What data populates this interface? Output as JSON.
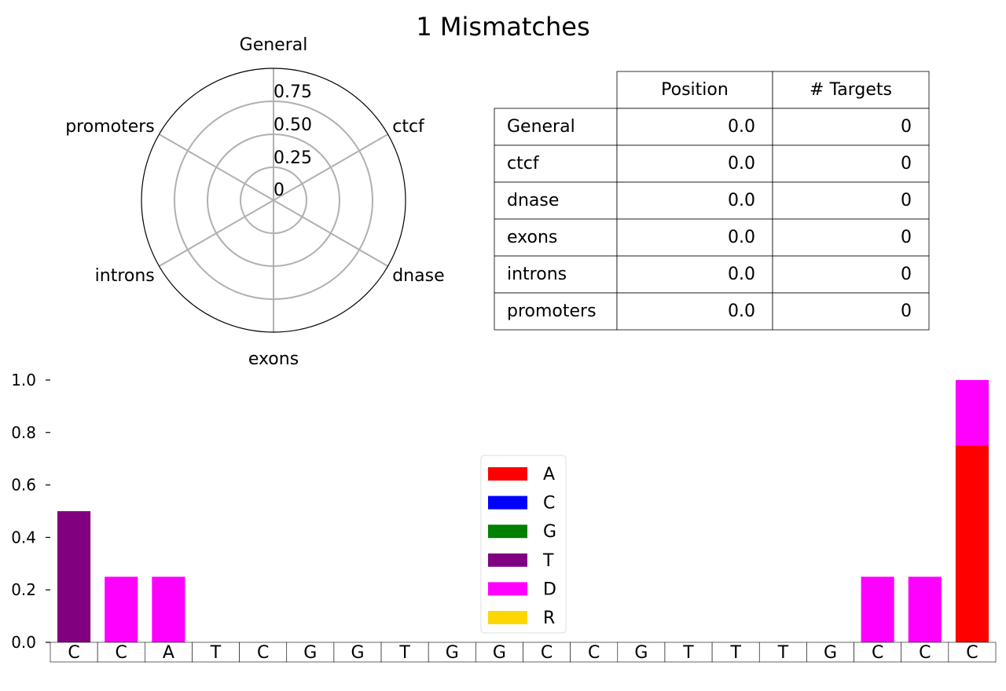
{
  "title": "1 Mismatches",
  "radar": {
    "categories": [
      "General",
      "ctcf",
      "dnase",
      "exons",
      "introns",
      "promoters"
    ],
    "values": [
      0,
      0,
      0,
      0,
      0,
      0
    ],
    "tick_labels": [
      "0",
      "0.25",
      "0.50",
      "0.75"
    ],
    "ticks": [
      0,
      0.25,
      0.5,
      0.75
    ],
    "rmax": 1.0
  },
  "table": {
    "headers": [
      "",
      "Position",
      "# Targets"
    ],
    "rows": [
      {
        "label": "General",
        "position": "0.0",
        "targets": "0"
      },
      {
        "label": "ctcf",
        "position": "0.0",
        "targets": "0"
      },
      {
        "label": "dnase",
        "position": "0.0",
        "targets": "0"
      },
      {
        "label": "exons",
        "position": "0.0",
        "targets": "0"
      },
      {
        "label": "introns",
        "position": "0.0",
        "targets": "0"
      },
      {
        "label": "promoters",
        "position": "0.0",
        "targets": "0"
      }
    ]
  },
  "colors": {
    "A": "#ff0000",
    "C": "#0000ff",
    "G": "#008000",
    "T": "#800080",
    "D": "#ff00ff",
    "R": "#ffd700"
  },
  "chart_data": [
    {
      "type": "radar",
      "categories": [
        "General",
        "ctcf",
        "dnase",
        "exons",
        "introns",
        "promoters"
      ],
      "values": [
        0,
        0,
        0,
        0,
        0,
        0
      ],
      "rlim": [
        0,
        1.0
      ],
      "rticks": [
        "0",
        "0.25",
        "0.50",
        "0.75"
      ]
    },
    {
      "type": "table",
      "columns": [
        "Position",
        "# Targets"
      ],
      "rows": [
        "General",
        "ctcf",
        "dnase",
        "exons",
        "introns",
        "promoters"
      ],
      "cells": [
        [
          "0.0",
          "0"
        ],
        [
          "0.0",
          "0"
        ],
        [
          "0.0",
          "0"
        ],
        [
          "0.0",
          "0"
        ],
        [
          "0.0",
          "0"
        ],
        [
          "0.0",
          "0"
        ]
      ]
    },
    {
      "type": "bar",
      "stacked": true,
      "categories": [
        "C",
        "C",
        "A",
        "T",
        "C",
        "G",
        "G",
        "T",
        "G",
        "G",
        "C",
        "C",
        "G",
        "T",
        "T",
        "T",
        "G",
        "C",
        "C",
        "C"
      ],
      "ylim": [
        0,
        1.0
      ],
      "yticks": [
        "0.0",
        "0.2",
        "0.4",
        "0.6",
        "0.8",
        "1.0"
      ],
      "legend_position": "center",
      "series": [
        {
          "name": "A",
          "values": [
            0,
            0,
            0,
            0,
            0,
            0,
            0,
            0,
            0,
            0,
            0,
            0,
            0,
            0,
            0,
            0,
            0,
            0,
            0,
            0.75
          ]
        },
        {
          "name": "C",
          "values": [
            0,
            0,
            0,
            0,
            0,
            0,
            0,
            0,
            0,
            0,
            0,
            0,
            0,
            0,
            0,
            0,
            0,
            0,
            0,
            0
          ]
        },
        {
          "name": "G",
          "values": [
            0,
            0,
            0,
            0,
            0,
            0,
            0,
            0,
            0,
            0,
            0,
            0,
            0,
            0,
            0,
            0,
            0,
            0,
            0,
            0
          ]
        },
        {
          "name": "T",
          "values": [
            0.5,
            0,
            0,
            0,
            0,
            0,
            0,
            0,
            0,
            0,
            0,
            0,
            0,
            0,
            0,
            0,
            0,
            0,
            0,
            0
          ]
        },
        {
          "name": "D",
          "values": [
            0,
            0.25,
            0.25,
            0,
            0,
            0,
            0,
            0,
            0,
            0,
            0,
            0,
            0,
            0,
            0,
            0,
            0,
            0.25,
            0.25,
            0.25
          ]
        },
        {
          "name": "R",
          "values": [
            0,
            0,
            0,
            0,
            0,
            0,
            0,
            0,
            0,
            0,
            0,
            0,
            0,
            0,
            0,
            0,
            0,
            0,
            0,
            0
          ]
        }
      ]
    }
  ]
}
